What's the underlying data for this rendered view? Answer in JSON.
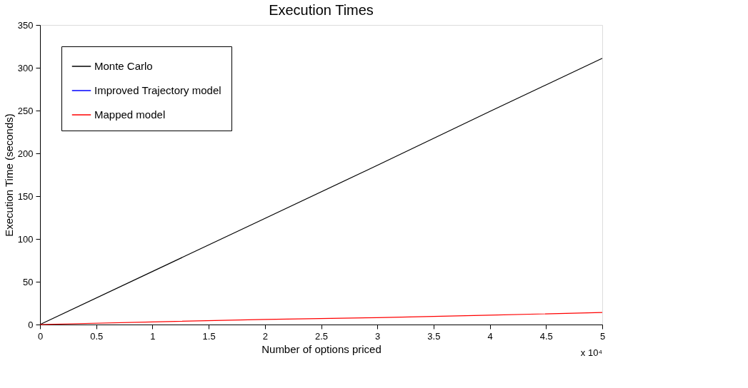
{
  "chart_data": {
    "type": "line",
    "title": "Execution Times",
    "xlabel": "Number of options priced",
    "ylabel": "Execution Time (seconds)",
    "x": [
      0,
      1,
      2,
      3,
      4,
      5
    ],
    "series": [
      {
        "name": "Monte Carlo",
        "color": "#000000",
        "values": [
          0,
          62,
          124,
          186,
          249,
          311
        ]
      },
      {
        "name": "Improved Trajectory model",
        "color": "#0000ff",
        "values": [
          null,
          null,
          null,
          null,
          null,
          null
        ]
      },
      {
        "name": "Mapped model",
        "color": "#ff0000",
        "values": [
          0,
          3,
          6,
          8,
          11,
          14
        ]
      }
    ],
    "xlim": [
      0,
      5
    ],
    "xticks": [
      0,
      0.5,
      1,
      1.5,
      2,
      2.5,
      3,
      3.5,
      4,
      4.5,
      5
    ],
    "ylim": [
      0,
      350
    ],
    "yticks": [
      0,
      50,
      100,
      150,
      200,
      250,
      300,
      350
    ],
    "grid": false,
    "legend": "top left",
    "annotations": [
      "x 10⁴"
    ]
  }
}
